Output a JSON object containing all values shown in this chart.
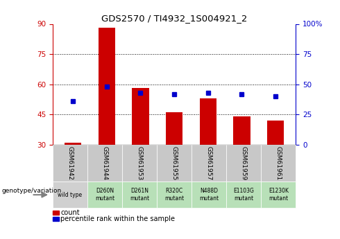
{
  "title": "GDS2570 / TI4932_1S004921_2",
  "samples": [
    "GSM61942",
    "GSM61944",
    "GSM61953",
    "GSM61955",
    "GSM61957",
    "GSM61959",
    "GSM61961"
  ],
  "genotypes": [
    "wild type",
    "D260N\nmutant",
    "D261N\nmutant",
    "R320C\nmutant",
    "N488D\nmutant",
    "E1103G\nmutant",
    "E1230K\nmutant"
  ],
  "count_values": [
    31,
    88,
    58,
    46,
    53,
    44,
    42
  ],
  "percentile_values": [
    36,
    48,
    43,
    42,
    43,
    42,
    40
  ],
  "ylim_left": [
    30,
    90
  ],
  "ylim_right": [
    0,
    100
  ],
  "yticks_left": [
    30,
    45,
    60,
    75,
    90
  ],
  "yticks_right": [
    0,
    25,
    50,
    75,
    100
  ],
  "bar_color": "#cc0000",
  "percentile_color": "#0000cc",
  "bar_width": 0.5,
  "left_axis_color": "#cc0000",
  "right_axis_color": "#0000cc",
  "genotype_bg_wt": "#d0d0d0",
  "genotype_bg_mutant": "#b8e0b8",
  "sample_bg": "#c8c8c8",
  "legend_count_label": "count",
  "legend_pct_label": "percentile rank within the sample",
  "genotype_label": "genotype/variation"
}
